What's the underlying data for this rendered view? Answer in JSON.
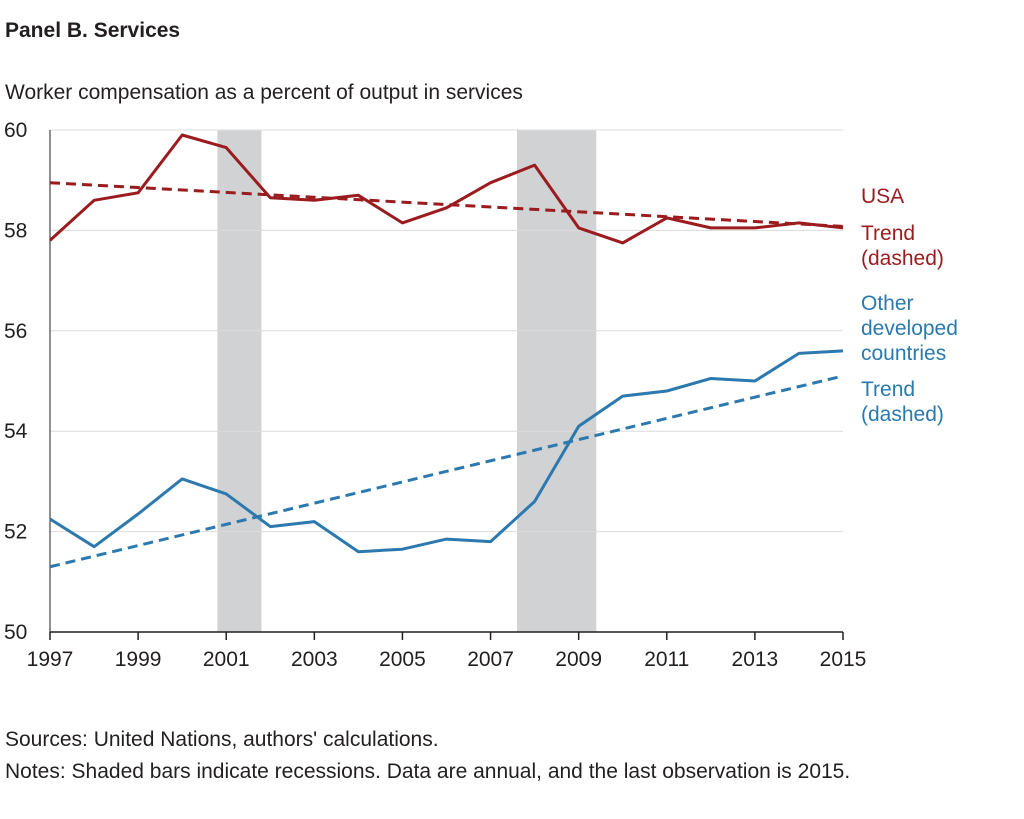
{
  "panel_title": "Panel B. Services",
  "subtitle": "Worker compensation as a percent of output in services",
  "sources": "Sources: United Nations, authors' calculations.",
  "notes": "Notes: Shaded bars indicate recessions. Data are annual, and the last observation is 2015.",
  "colors": {
    "usa": "#9b1b1e",
    "other": "#2b79ae",
    "recession": "#d0d2d4",
    "grid": "#dcdcdc",
    "axis": "#231f20"
  },
  "chart_data": {
    "type": "line",
    "x": [
      1997,
      1998,
      1999,
      2000,
      2001,
      2002,
      2003,
      2004,
      2005,
      2006,
      2007,
      2008,
      2009,
      2010,
      2011,
      2012,
      2013,
      2014,
      2015
    ],
    "x_tick_labels": [
      "1997",
      "1999",
      "2001",
      "2003",
      "2005",
      "2007",
      "2009",
      "2011",
      "2013",
      "2015"
    ],
    "ylim": [
      50,
      60
    ],
    "y_tick_labels": [
      "50",
      "52",
      "54",
      "56",
      "58",
      "60"
    ],
    "grid": true,
    "recessions": [
      [
        2000.8,
        2001.8
      ],
      [
        2007.6,
        2009.4
      ]
    ],
    "series": [
      {
        "name": "USA",
        "key": "usa",
        "style": "solid",
        "values": [
          57.8,
          58.6,
          58.75,
          59.9,
          59.65,
          58.65,
          58.6,
          58.7,
          58.15,
          58.45,
          58.95,
          59.3,
          58.05,
          57.75,
          58.25,
          58.05,
          58.05,
          58.15,
          58.05
        ]
      },
      {
        "name": "USA trend",
        "key": "usa",
        "style": "dashed",
        "values_linear": [
          58.95,
          58.08
        ]
      },
      {
        "name": "Other developed countries",
        "key": "other",
        "style": "solid",
        "values": [
          52.25,
          51.7,
          52.35,
          53.05,
          52.75,
          52.1,
          52.2,
          51.6,
          51.65,
          51.85,
          51.8,
          52.6,
          54.1,
          54.7,
          54.8,
          55.05,
          55.0,
          55.55,
          55.6
        ]
      },
      {
        "name": "Other developed countries trend",
        "key": "other",
        "style": "dashed",
        "values_linear": [
          51.3,
          55.1
        ]
      }
    ],
    "annotations": {
      "usa_label": "USA",
      "usa_trend": [
        "Trend",
        "(dashed)"
      ],
      "other_label": [
        "Other",
        "developed",
        "countries"
      ],
      "other_trend": [
        "Trend",
        "(dashed)"
      ]
    }
  }
}
